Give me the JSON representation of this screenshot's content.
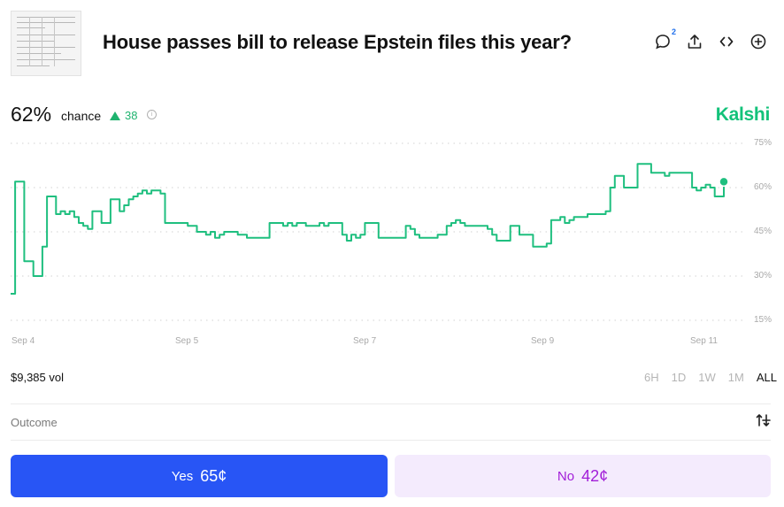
{
  "market": {
    "title": "House passes bill to release Epstein files this year?",
    "probability": "62%",
    "chance_label": "chance",
    "change": "38",
    "brand": "Kalshi"
  },
  "header_actions": {
    "comment_badge": "2",
    "comment_icon": "comment-icon",
    "share_icon": "share-icon",
    "embed_icon": "embed-icon",
    "add_icon": "add-icon"
  },
  "chart_data": {
    "type": "line",
    "y_ticks": [
      "75%",
      "60%",
      "45%",
      "30%",
      "15%"
    ],
    "x_ticks": [
      "Sep 4",
      "Sep 5",
      "Sep 7",
      "Sep 9",
      "Sep 11"
    ],
    "ylim": [
      15,
      75
    ],
    "grid": true,
    "line_color": "#1fbf7f",
    "series": [
      {
        "values": [
          24,
          62,
          62,
          35,
          35,
          30,
          30,
          40,
          57,
          57,
          51,
          52,
          51,
          52,
          50,
          48,
          47,
          46,
          52,
          52,
          48,
          48,
          56,
          56,
          52,
          54,
          56,
          57,
          58,
          59,
          58,
          59,
          59,
          58,
          48,
          48,
          48,
          48,
          48,
          47,
          47,
          45,
          45,
          44,
          45,
          43,
          44,
          45,
          45,
          45,
          44,
          44,
          43,
          43,
          43,
          43,
          43,
          48,
          48,
          48,
          47,
          48,
          47,
          48,
          48,
          47,
          47,
          47,
          48,
          47,
          48,
          48,
          48,
          44,
          42,
          44,
          43,
          44,
          48,
          48,
          48,
          43,
          43,
          43,
          43,
          43,
          43,
          47,
          46,
          44,
          43,
          43,
          43,
          43,
          44,
          44,
          47,
          48,
          49,
          48,
          47,
          47,
          47,
          47,
          47,
          46,
          44,
          42,
          42,
          42,
          47,
          47,
          44,
          44,
          44,
          40,
          40,
          40,
          41,
          49,
          49,
          50,
          48,
          49,
          50,
          50,
          50,
          51,
          51,
          51,
          51,
          52,
          60,
          64,
          64,
          60,
          60,
          60,
          68,
          68,
          68,
          65,
          65,
          65,
          64,
          65,
          65,
          65,
          65,
          65,
          60,
          59,
          60,
          61,
          60,
          57,
          57,
          62
        ]
      }
    ]
  },
  "stats": {
    "volume": "$9,385 vol"
  },
  "time_ranges": {
    "items": [
      "6H",
      "1D",
      "1W",
      "1M",
      "ALL"
    ],
    "active": "ALL"
  },
  "outcome": {
    "header_label": "Outcome",
    "sort_icon": "sort-icon"
  },
  "buttons": {
    "yes_label": "Yes",
    "yes_price": "65¢",
    "no_label": "No",
    "no_price": "42¢"
  }
}
